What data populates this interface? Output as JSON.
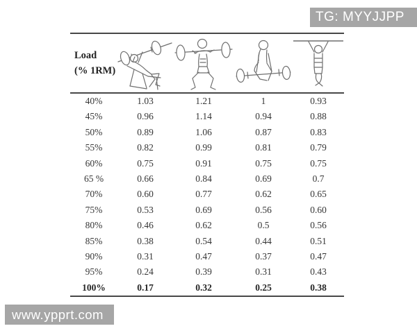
{
  "watermarks": {
    "top_right": "TG: MYYJJPP",
    "bottom_left": "www.ypprt.com",
    "bg_color": "#a6a6a6",
    "text_color": "#ffffff"
  },
  "colors": {
    "table_line": "#474747",
    "body_text": "#363636",
    "figure_stroke": "#6e6e6e",
    "page_bg": "#ffffff"
  },
  "table": {
    "load_header": {
      "line1": "Load",
      "line2": "(% 1RM)"
    },
    "exercise_columns": [
      "incline-bench-press",
      "barbell-back-squat",
      "deadlift",
      "pull-up"
    ],
    "rows": [
      {
        "load": "40%",
        "values": [
          "1.03",
          "1.21",
          "1",
          "0.93"
        ],
        "bold": false
      },
      {
        "load": "45%",
        "values": [
          "0.96",
          "1.14",
          "0.94",
          "0.88"
        ],
        "bold": false
      },
      {
        "load": "50%",
        "values": [
          "0.89",
          "1.06",
          "0.87",
          "0.83"
        ],
        "bold": false
      },
      {
        "load": "55%",
        "values": [
          "0.82",
          "0.99",
          "0.81",
          "0.79"
        ],
        "bold": false
      },
      {
        "load": "60%",
        "values": [
          "0.75",
          "0.91",
          "0.75",
          "0.75"
        ],
        "bold": false
      },
      {
        "load": "65 %",
        "values": [
          "0.66",
          "0.84",
          "0.69",
          "0.7"
        ],
        "bold": false
      },
      {
        "load": "70%",
        "values": [
          "0.60",
          "0.77",
          "0.62",
          "0.65"
        ],
        "bold": false
      },
      {
        "load": "75%",
        "values": [
          "0.53",
          "0.69",
          "0.56",
          "0.60"
        ],
        "bold": false
      },
      {
        "load": "80%",
        "values": [
          "0.46",
          "0.62",
          "0.5",
          "0.56"
        ],
        "bold": false
      },
      {
        "load": "85%",
        "values": [
          "0.38",
          "0.54",
          "0.44",
          "0.51"
        ],
        "bold": false
      },
      {
        "load": "90%",
        "values": [
          "0.31",
          "0.47",
          "0.37",
          "0.47"
        ],
        "bold": false
      },
      {
        "load": "95%",
        "values": [
          "0.24",
          "0.39",
          "0.31",
          "0.43"
        ],
        "bold": false
      },
      {
        "load": "100%",
        "values": [
          "0.17",
          "0.32",
          "0.25",
          "0.38"
        ],
        "bold": true
      }
    ]
  }
}
